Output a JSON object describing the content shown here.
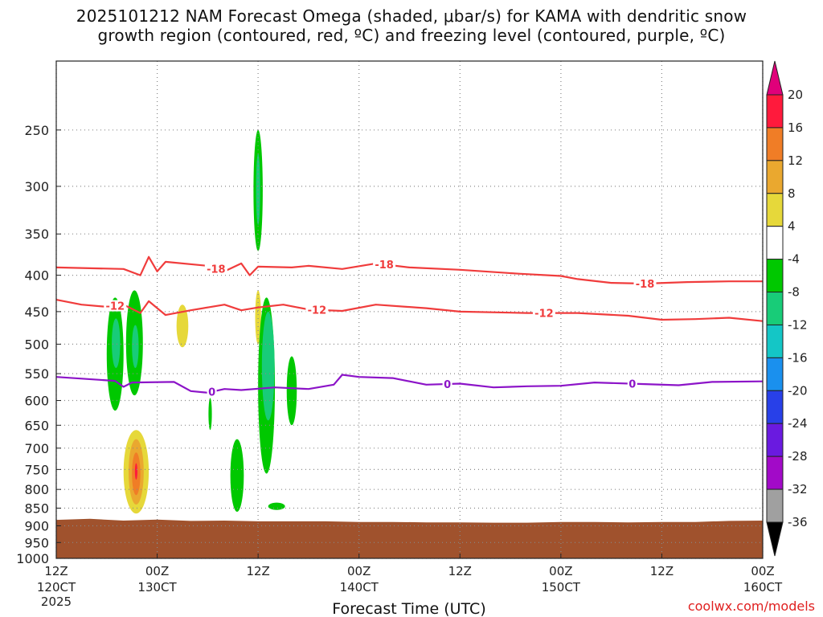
{
  "title_line1": "2025101212 NAM Forecast Omega (shaded, μbar/s) for KAMA with dendritic snow",
  "title_line2": "growth region (contoured, red, ºC) and freezing level (contoured, purple, ºC)",
  "credit": "coolwx.com/models",
  "chart_data": {
    "type": "contour",
    "title": "2025101212 NAM Forecast Omega (shaded, μbar/s) for KAMA with dendritic snow growth region (contoured, red, ºC) and freezing level (contoured, purple, ºC)",
    "xlabel": "Forecast Time (UTC)",
    "ylabel": "",
    "x_range_hours": [
      0,
      84
    ],
    "y_scale": "log-pressure",
    "y_range_mb": [
      1000,
      200
    ],
    "y_ticks": [
      "250",
      "300",
      "350",
      "400",
      "450",
      "500",
      "550",
      "600",
      "650",
      "700",
      "750",
      "800",
      "850",
      "900",
      "950",
      "1000"
    ],
    "y_tick_values": [
      250,
      300,
      350,
      400,
      450,
      500,
      550,
      600,
      650,
      700,
      750,
      800,
      850,
      900,
      950,
      1000
    ],
    "x_ticks": [
      {
        "h": 0,
        "top": "12Z",
        "mid": "120CT",
        "bot": "2025"
      },
      {
        "h": 12,
        "top": "00Z",
        "mid": "130CT",
        "bot": ""
      },
      {
        "h": 24,
        "top": "12Z",
        "mid": "",
        "bot": ""
      },
      {
        "h": 36,
        "top": "00Z",
        "mid": "140CT",
        "bot": ""
      },
      {
        "h": 48,
        "top": "12Z",
        "mid": "",
        "bot": ""
      },
      {
        "h": 60,
        "top": "00Z",
        "mid": "150CT",
        "bot": ""
      },
      {
        "h": 72,
        "top": "12Z",
        "mid": "",
        "bot": ""
      },
      {
        "h": 84,
        "top": "00Z",
        "mid": "160CT",
        "bot": ""
      }
    ],
    "grid": true,
    "colorbar": {
      "labels": [
        "20",
        "16",
        "12",
        "8",
        "4",
        "-4",
        "-8",
        "-12",
        "-16",
        "-20",
        "-24",
        "-28",
        "-32",
        "-36"
      ],
      "colors": [
        "#ff1a3c",
        "#f07d26",
        "#eaa82f",
        "#e6d83a",
        "#ffffff",
        "#00c800",
        "#18cc78",
        "#14c6c6",
        "#1a90ee",
        "#2840e8",
        "#6a1ae0",
        "#a20ac8",
        "#a0a0a0"
      ],
      "top_arrow_color": "#e0007a",
      "bottom_arrow_color": "#000000"
    },
    "contours": [
      {
        "name": "-18",
        "color": "#f03c3c",
        "points": [
          [
            0,
            390
          ],
          [
            8,
            392
          ],
          [
            10,
            400
          ],
          [
            11,
            377
          ],
          [
            12,
            395
          ],
          [
            13,
            383
          ],
          [
            18,
            388
          ],
          [
            20,
            395
          ],
          [
            22,
            385
          ],
          [
            23,
            400
          ],
          [
            24,
            389
          ],
          [
            28,
            390
          ],
          [
            30,
            388
          ],
          [
            34,
            392
          ],
          [
            38,
            385
          ],
          [
            42,
            390
          ],
          [
            48,
            393
          ],
          [
            55,
            398
          ],
          [
            60,
            401
          ],
          [
            62,
            405
          ],
          [
            66,
            410
          ],
          [
            70,
            411
          ],
          [
            75,
            409
          ],
          [
            80,
            408
          ],
          [
            84,
            408
          ]
        ],
        "labels": [
          [
            19,
            "-18"
          ],
          [
            39,
            "-18"
          ],
          [
            70,
            "-18"
          ]
        ]
      },
      {
        "name": "-12",
        "color": "#f03c3c",
        "points": [
          [
            0,
            433
          ],
          [
            3,
            440
          ],
          [
            6,
            443
          ],
          [
            8,
            440
          ],
          [
            10,
            452
          ],
          [
            11,
            435
          ],
          [
            13,
            455
          ],
          [
            16,
            448
          ],
          [
            20,
            440
          ],
          [
            22,
            448
          ],
          [
            24,
            444
          ],
          [
            27,
            440
          ],
          [
            30,
            447
          ],
          [
            34,
            449
          ],
          [
            38,
            440
          ],
          [
            44,
            445
          ],
          [
            48,
            450
          ],
          [
            56,
            452
          ],
          [
            62,
            452
          ],
          [
            68,
            456
          ],
          [
            72,
            462
          ],
          [
            76,
            461
          ],
          [
            80,
            459
          ],
          [
            84,
            464
          ]
        ],
        "labels": [
          [
            7,
            "-12"
          ],
          [
            31,
            "-12"
          ],
          [
            58,
            "-12"
          ]
        ]
      },
      {
        "name": "0",
        "color": "#8c14c8",
        "points": [
          [
            0,
            556
          ],
          [
            7,
            563
          ],
          [
            8,
            574
          ],
          [
            9,
            566
          ],
          [
            14,
            565
          ],
          [
            16,
            582
          ],
          [
            18,
            585
          ],
          [
            20,
            578
          ],
          [
            22,
            580
          ],
          [
            26,
            575
          ],
          [
            30,
            578
          ],
          [
            33,
            570
          ],
          [
            34,
            552
          ],
          [
            36,
            556
          ],
          [
            40,
            558
          ],
          [
            44,
            570
          ],
          [
            48,
            568
          ],
          [
            52,
            575
          ],
          [
            56,
            573
          ],
          [
            60,
            572
          ],
          [
            64,
            566
          ],
          [
            70,
            569
          ],
          [
            74,
            571
          ],
          [
            78,
            565
          ],
          [
            84,
            564
          ]
        ],
        "labels": [
          [
            18.5,
            "0"
          ],
          [
            46.5,
            "0"
          ],
          [
            68.5,
            "0"
          ]
        ]
      }
    ],
    "omega_blobs": [
      {
        "cx": 7.0,
        "pc": 500,
        "rx": 1.0,
        "ptop": 430,
        "pbot": 620,
        "value": -6
      },
      {
        "cx": 9.3,
        "pc": 495,
        "rx": 1.0,
        "ptop": 420,
        "pbot": 590,
        "value": -6
      },
      {
        "cx": 7.1,
        "pc": 495,
        "rx": 0.5,
        "ptop": 460,
        "pbot": 540,
        "value": -10
      },
      {
        "cx": 9.4,
        "pc": 500,
        "rx": 0.4,
        "ptop": 470,
        "pbot": 540,
        "value": -10
      },
      {
        "cx": 15.0,
        "pc": 470,
        "rx": 0.7,
        "ptop": 440,
        "pbot": 505,
        "value": 6
      },
      {
        "cx": 18.3,
        "pc": 620,
        "rx": 0.2,
        "ptop": 595,
        "pbot": 660,
        "value": -6
      },
      {
        "cx": 21.5,
        "pc": 780,
        "rx": 0.8,
        "ptop": 680,
        "pbot": 860,
        "value": -6
      },
      {
        "cx": 24.0,
        "pc": 305,
        "rx": 0.55,
        "ptop": 250,
        "pbot": 370,
        "value": -6
      },
      {
        "cx": 24.0,
        "pc": 300,
        "rx": 0.25,
        "ptop": 270,
        "pbot": 340,
        "value": -10
      },
      {
        "cx": 24.0,
        "pc": 455,
        "rx": 0.35,
        "ptop": 420,
        "pbot": 500,
        "value": 6
      },
      {
        "cx": 25.0,
        "pc": 580,
        "rx": 1.0,
        "ptop": 430,
        "pbot": 760,
        "value": -6
      },
      {
        "cx": 25.2,
        "pc": 560,
        "rx": 0.75,
        "ptop": 450,
        "pbot": 640,
        "value": -10
      },
      {
        "cx": 26.2,
        "pc": 845,
        "rx": 1.0,
        "ptop": 835,
        "pbot": 855,
        "value": -6
      },
      {
        "cx": 28.0,
        "pc": 580,
        "rx": 0.6,
        "ptop": 520,
        "pbot": 650,
        "value": -6
      },
      {
        "cx": 9.5,
        "pc": 760,
        "rx": 1.5,
        "ptop": 660,
        "pbot": 865,
        "value": 6
      },
      {
        "cx": 9.5,
        "pc": 755,
        "rx": 0.9,
        "ptop": 680,
        "pbot": 840,
        "value": 10
      },
      {
        "cx": 9.5,
        "pc": 760,
        "rx": 0.5,
        "ptop": 710,
        "pbot": 815,
        "value": 14
      },
      {
        "cx": 9.5,
        "pc": 755,
        "rx": 0.15,
        "ptop": 735,
        "pbot": 775,
        "value": 18
      }
    ],
    "terrain": {
      "color": "#a0522d",
      "surface_mb": [
        [
          0,
          883
        ],
        [
          4,
          880
        ],
        [
          8,
          885
        ],
        [
          12,
          882
        ],
        [
          16,
          886
        ],
        [
          20,
          885
        ],
        [
          24,
          887
        ],
        [
          28,
          887
        ],
        [
          32,
          887
        ],
        [
          36,
          889
        ],
        [
          40,
          889
        ],
        [
          44,
          890
        ],
        [
          48,
          890
        ],
        [
          52,
          891
        ],
        [
          56,
          891
        ],
        [
          60,
          889
        ],
        [
          64,
          889
        ],
        [
          68,
          890
        ],
        [
          72,
          889
        ],
        [
          76,
          889
        ],
        [
          80,
          886
        ],
        [
          84,
          885
        ]
      ]
    }
  }
}
